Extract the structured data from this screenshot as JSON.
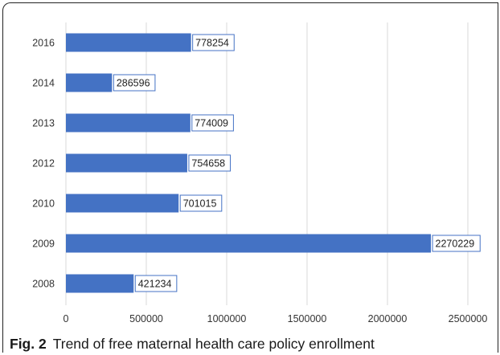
{
  "caption": {
    "fig_label": "Fig. 2",
    "text": "Trend of free maternal health care policy enrollment"
  },
  "chart_data": {
    "type": "bar",
    "orientation": "horizontal",
    "categories": [
      "2016",
      "2014",
      "2013",
      "2012",
      "2010",
      "2009",
      "2008"
    ],
    "values": [
      778254,
      286596,
      774009,
      754658,
      701015,
      2270229,
      421234
    ],
    "xlim": [
      0,
      2500000
    ],
    "xticks": [
      "0",
      "500000",
      "1000000",
      "1500000",
      "2000000",
      "2500000"
    ],
    "grid": true,
    "data_labels": true,
    "bar_color": "#4472c4"
  }
}
